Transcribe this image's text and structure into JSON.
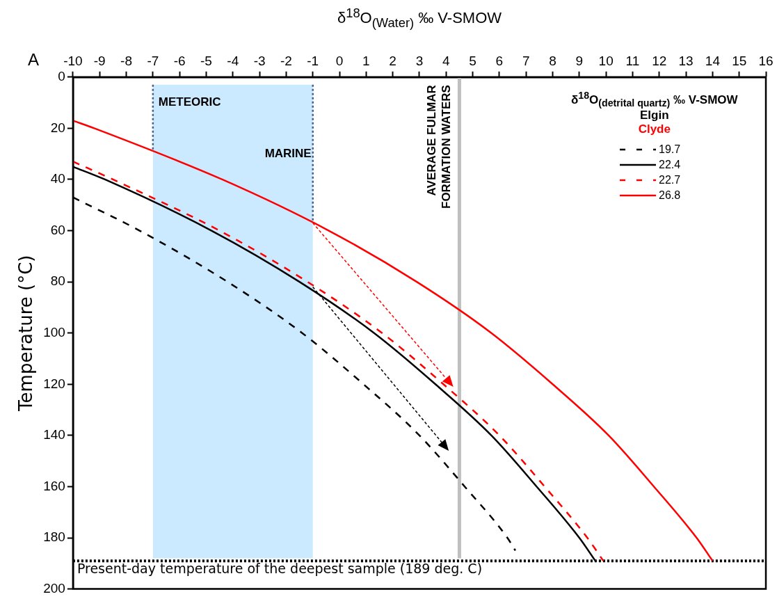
{
  "chart_data": {
    "type": "line",
    "xlabel": "δ$^{18}$O$_{(Water)}$ ‰  V-SMOW",
    "ylabel": "Temperature (°C)",
    "legend_title": "δ$^{18}$O$_{(detrital quartz)}$ ‰  V-SMOW",
    "legend": "top right",
    "marker": "none",
    "grid": false,
    "xlim": [
      -10,
      16
    ],
    "xticks": [
      -10,
      -9,
      -8,
      -7,
      -6,
      -5,
      -4,
      -3,
      -2,
      -1,
      0,
      1,
      2,
      3,
      4,
      5,
      6,
      7,
      8,
      9,
      10,
      11,
      12,
      13,
      14,
      15,
      16
    ],
    "ylim": [
      200,
      0
    ],
    "yticks": [
      0,
      20,
      40,
      60,
      80,
      100,
      120,
      140,
      160,
      180,
      200
    ],
    "series": [
      {
        "name": "19.7",
        "color": "#000000",
        "line_style": "dashed",
        "x": [
          -10,
          -7.5,
          -4.2,
          -1.4,
          0.9,
          3,
          4.7,
          6.3,
          6.6
        ],
        "values": [
          47,
          60,
          80,
          100,
          120,
          140,
          160,
          180,
          185
        ]
      },
      {
        "name": "22.4",
        "color": "#000000",
        "line_style": "solid",
        "x": [
          -10,
          -8.8,
          -4.8,
          -1.5,
          1.3,
          3.6,
          5.7,
          7.4,
          9,
          9.6
        ],
        "values": [
          35,
          40,
          60,
          80,
          100,
          120,
          140,
          160,
          180,
          189
        ]
      },
      {
        "name": "22.7",
        "color": "#ff0000",
        "line_style": "dashed",
        "x": [
          -10,
          -8.5,
          -4.5,
          -1.2,
          1.6,
          3.9,
          6,
          7.7,
          9.3,
          9.9
        ],
        "values": [
          33,
          40,
          60,
          80,
          100,
          120,
          140,
          160,
          180,
          189
        ]
      },
      {
        "name": "26.8",
        "color": "#ff0000",
        "line_style": "solid",
        "x": [
          -10,
          -9.2,
          -4.4,
          -0.4,
          2.9,
          5.7,
          8,
          10.1,
          11.8,
          13.4,
          14
        ],
        "values": [
          17,
          20,
          40,
          60,
          80,
          100,
          120,
          140,
          160,
          180,
          189
        ]
      }
    ],
    "bands": [
      {
        "axis": "x",
        "from": -7,
        "to": -1,
        "color": "#cceaff"
      }
    ],
    "ref_lines": [
      {
        "axis": "x",
        "value": -7,
        "label": "METEORIC",
        "color": "#44648c",
        "line_style": "dotted"
      },
      {
        "axis": "x",
        "value": -1,
        "label": "MARINE",
        "color": "#44648c",
        "line_style": "dotted"
      },
      {
        "axis": "x",
        "value": 4.5,
        "label": "AVERAGE FULMAR FORMATION WATERS",
        "color": "#bfbfbf",
        "line_style": "solid"
      },
      {
        "axis": "y",
        "value": 189,
        "label": "Present-day temperature of the deepest sample (189 deg. C)",
        "color": "#000000",
        "line_style": "dotted"
      }
    ],
    "annotations": [
      "A",
      "Elgin",
      "Clyde"
    ]
  }
}
